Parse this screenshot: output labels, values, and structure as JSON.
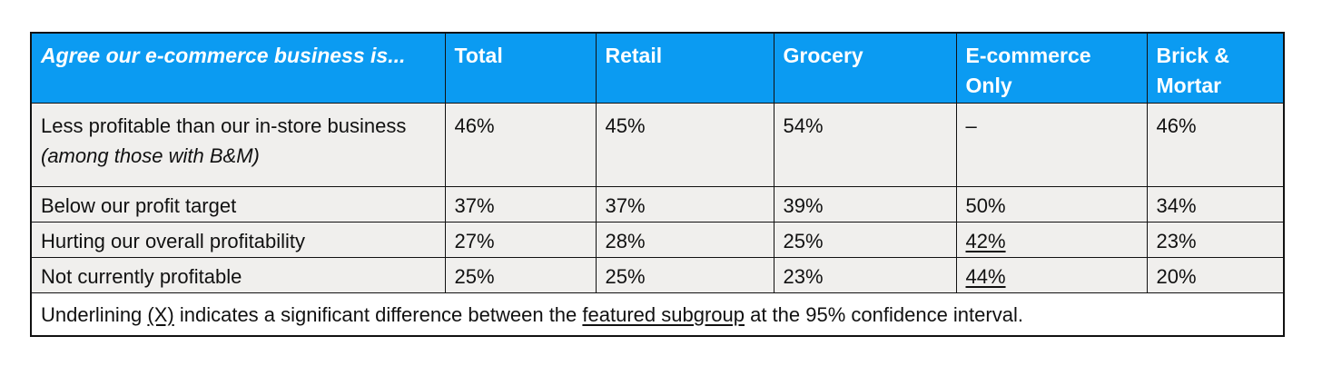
{
  "table": {
    "header": {
      "question": "Agree our e-commerce business is...",
      "columns": [
        "Total",
        "Retail",
        "Grocery",
        "E-commerce Only",
        "Brick & Mortar"
      ]
    },
    "rows": [
      {
        "label": "Less profitable than our in-store business",
        "sublabel": "(among those with B&M)",
        "values": [
          "46%",
          "45%",
          "54%",
          "–",
          "46%"
        ],
        "underlined": [
          false,
          false,
          false,
          false,
          false
        ]
      },
      {
        "label": "Below our profit target",
        "values": [
          "37%",
          "37%",
          "39%",
          "50%",
          "34%"
        ],
        "underlined": [
          false,
          false,
          false,
          false,
          false
        ]
      },
      {
        "label": "Hurting our overall profitability",
        "values": [
          "27%",
          "28%",
          "25%",
          "42%",
          "23%"
        ],
        "underlined": [
          false,
          false,
          false,
          true,
          false
        ]
      },
      {
        "label": "Not currently profitable",
        "values": [
          "25%",
          "25%",
          "23%",
          "44%",
          "20%"
        ],
        "underlined": [
          false,
          false,
          false,
          true,
          false
        ]
      }
    ],
    "footnote": {
      "part1": "Underlining ",
      "marker": "(X)",
      "part2": " indicates a significant difference between the ",
      "link": "featured subgroup",
      "part3": " at the 95% confidence interval."
    }
  },
  "colors": {
    "header_bg": "#0b9bf2",
    "row_bg": "#f0efed",
    "border": "#111111"
  }
}
